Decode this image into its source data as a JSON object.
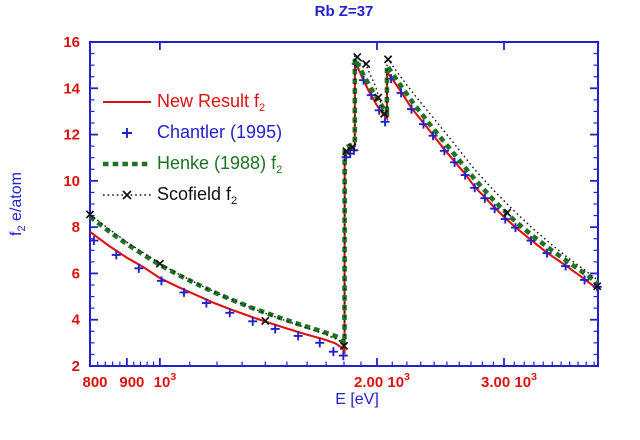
{
  "title": "Rb Z=37",
  "colors": {
    "background": "#ffffff",
    "axis": "#2222cc",
    "tick_labels": "#dd1111",
    "title_text": "#2222cc",
    "new_result": "#e01010",
    "chantler": "#2222cc",
    "henke": "#1e7222",
    "scofield": "#111111"
  },
  "axes": {
    "x": {
      "label": "E [eV]",
      "scale": "log",
      "major_ticks": [
        {
          "value": 800,
          "text": "800",
          "sup": ""
        },
        {
          "value": 900,
          "text": "900",
          "sup": ""
        },
        {
          "value": 1000,
          "text": "10",
          "sup": "3"
        },
        {
          "value": 2000,
          "text": "2.00 10",
          "sup": "3"
        },
        {
          "value": 3000,
          "text": "3.00 10",
          "sup": "3"
        }
      ],
      "minor_ticks": [
        820,
        840,
        860,
        880,
        920,
        940,
        960,
        980,
        1100,
        1200,
        1300,
        1400,
        1500,
        1600,
        1700,
        1800,
        1900,
        2100,
        2200,
        2300,
        2400,
        2500,
        2600,
        2700,
        2800,
        2900,
        3100,
        3200,
        3300,
        3400,
        3500,
        3600,
        3700,
        3800,
        3900,
        4000
      ],
      "top_major_ticks": [
        1000,
        2000,
        3000
      ]
    },
    "y": {
      "label_prefix": "f",
      "label_sub": "2",
      "label_suffix": " e/atom",
      "major_step": 2,
      "minor_step": 0.5
    }
  },
  "chart_data": {
    "type": "line",
    "title": "Rb Z=37",
    "xlabel": "E [eV]",
    "ylabel": "f2 e/atom",
    "x_scale": "log",
    "xlim": [
      800,
      4050
    ],
    "ylim": [
      2,
      16
    ],
    "grid": false,
    "legend_position": "upper-left-inside",
    "edge_energies_eV": {
      "L3": 1804,
      "L2": 1864,
      "L1": 2065
    },
    "series": [
      {
        "name": "new-result",
        "legend_label": "New Result f",
        "legend_sub": "2",
        "color": "#e01010",
        "style": "solid-line",
        "points": [
          [
            800,
            7.8
          ],
          [
            850,
            7.19
          ],
          [
            900,
            6.68
          ],
          [
            950,
            6.26
          ],
          [
            1000,
            5.8
          ],
          [
            1060,
            5.42
          ],
          [
            1120,
            5.08
          ],
          [
            1190,
            4.72
          ],
          [
            1260,
            4.42
          ],
          [
            1340,
            4.12
          ],
          [
            1420,
            3.86
          ],
          [
            1500,
            3.62
          ],
          [
            1590,
            3.38
          ],
          [
            1680,
            3.17
          ],
          [
            1750,
            2.98
          ],
          [
            1790,
            2.78
          ],
          [
            1803,
            2.62
          ],
          [
            1804,
            11.15
          ],
          [
            1830,
            11.32
          ],
          [
            1863,
            11.5
          ],
          [
            1864,
            15.2
          ],
          [
            1900,
            14.6
          ],
          [
            1950,
            13.85
          ],
          [
            2000,
            13.25
          ],
          [
            2040,
            12.88
          ],
          [
            2064,
            12.7
          ],
          [
            2065,
            14.7
          ],
          [
            2100,
            14.4
          ],
          [
            2160,
            13.85
          ],
          [
            2233,
            13.15
          ],
          [
            2320,
            12.5
          ],
          [
            2390,
            12.0
          ],
          [
            2480,
            11.35
          ],
          [
            2560,
            10.85
          ],
          [
            2650,
            10.3
          ],
          [
            2730,
            9.75
          ],
          [
            2820,
            9.3
          ],
          [
            2910,
            8.85
          ],
          [
            3010,
            8.4
          ],
          [
            3110,
            8.0
          ],
          [
            3270,
            7.45
          ],
          [
            3440,
            6.9
          ],
          [
            3650,
            6.35
          ],
          [
            3880,
            5.75
          ],
          [
            4050,
            5.3
          ]
        ]
      },
      {
        "name": "chantler-1995",
        "legend_label": "Chantler (1995)",
        "legend_sub": "",
        "color": "#2222cc",
        "style": "plus-markers",
        "points": [
          [
            810,
            7.42
          ],
          [
            870,
            6.8
          ],
          [
            935,
            6.22
          ],
          [
            1005,
            5.68
          ],
          [
            1080,
            5.18
          ],
          [
            1160,
            4.72
          ],
          [
            1250,
            4.3
          ],
          [
            1345,
            3.93
          ],
          [
            1445,
            3.6
          ],
          [
            1555,
            3.3
          ],
          [
            1666,
            3.0
          ],
          [
            1740,
            2.62
          ],
          [
            1796,
            2.45
          ],
          [
            1812,
            11.02
          ],
          [
            1836,
            11.18
          ],
          [
            1858,
            11.32
          ],
          [
            1872,
            15.05
          ],
          [
            1916,
            14.35
          ],
          [
            1964,
            13.7
          ],
          [
            2014,
            13.05
          ],
          [
            2052,
            12.55
          ],
          [
            2092,
            14.42
          ],
          [
            2160,
            13.8
          ],
          [
            2233,
            13.1
          ],
          [
            2320,
            12.45
          ],
          [
            2392,
            11.95
          ],
          [
            2480,
            11.3
          ],
          [
            2562,
            10.8
          ],
          [
            2650,
            10.25
          ],
          [
            2732,
            9.7
          ],
          [
            2822,
            9.25
          ],
          [
            2912,
            8.8
          ],
          [
            3012,
            8.35
          ],
          [
            3112,
            7.98
          ],
          [
            3270,
            7.42
          ],
          [
            3442,
            6.88
          ],
          [
            3652,
            6.32
          ],
          [
            3880,
            5.72
          ],
          [
            4040,
            5.42
          ]
        ]
      },
      {
        "name": "henke-1988",
        "legend_label": "Henke (1988) f",
        "legend_sub": "2",
        "color": "#1e7222",
        "style": "thick-dashed-line",
        "points": [
          [
            800,
            8.45
          ],
          [
            850,
            7.82
          ],
          [
            900,
            7.27
          ],
          [
            950,
            6.8
          ],
          [
            1000,
            6.37
          ],
          [
            1060,
            5.94
          ],
          [
            1120,
            5.57
          ],
          [
            1190,
            5.18
          ],
          [
            1260,
            4.85
          ],
          [
            1340,
            4.52
          ],
          [
            1420,
            4.24
          ],
          [
            1500,
            3.98
          ],
          [
            1590,
            3.72
          ],
          [
            1680,
            3.49
          ],
          [
            1770,
            3.24
          ],
          [
            1803,
            2.97
          ],
          [
            1804,
            11.42
          ],
          [
            1863,
            11.62
          ],
          [
            1864,
            15.28
          ],
          [
            1920,
            14.52
          ],
          [
            1980,
            13.78
          ],
          [
            2040,
            13.15
          ],
          [
            2064,
            12.98
          ],
          [
            2065,
            14.98
          ],
          [
            2150,
            14.18
          ],
          [
            2250,
            13.32
          ],
          [
            2390,
            12.28
          ],
          [
            2560,
            11.15
          ],
          [
            2730,
            10.08
          ],
          [
            2910,
            9.12
          ],
          [
            3110,
            8.25
          ],
          [
            3300,
            7.58
          ],
          [
            3500,
            6.98
          ],
          [
            3700,
            6.45
          ],
          [
            3900,
            5.95
          ],
          [
            4050,
            5.58
          ]
        ]
      },
      {
        "name": "scofield",
        "legend_label": "Scofield f",
        "legend_sub": "2",
        "color": "#111111",
        "style": "dotted-line-x-markers",
        "points": [
          [
            800,
            8.55
          ],
          [
            850,
            7.92
          ],
          [
            900,
            7.35
          ],
          [
            950,
            6.88
          ],
          [
            1000,
            6.42
          ],
          [
            1060,
            5.98
          ],
          [
            1120,
            5.6
          ],
          [
            1190,
            5.2
          ],
          [
            1260,
            4.86
          ],
          [
            1340,
            4.51
          ],
          [
            1420,
            4.21
          ],
          [
            1500,
            3.94
          ],
          [
            1590,
            3.67
          ],
          [
            1680,
            3.42
          ],
          [
            1770,
            3.12
          ],
          [
            1803,
            2.86
          ],
          [
            1804,
            11.32
          ],
          [
            1863,
            11.52
          ],
          [
            1864,
            15.42
          ],
          [
            1930,
            15.02
          ],
          [
            1990,
            14.1
          ],
          [
            2042,
            13.0
          ],
          [
            2064,
            12.85
          ],
          [
            2065,
            15.32
          ],
          [
            2150,
            14.55
          ],
          [
            2250,
            13.75
          ],
          [
            2390,
            12.75
          ],
          [
            2560,
            11.6
          ],
          [
            2730,
            10.5
          ],
          [
            2910,
            9.55
          ],
          [
            3110,
            8.65
          ],
          [
            3300,
            7.9
          ],
          [
            3500,
            7.22
          ],
          [
            3700,
            6.62
          ],
          [
            3900,
            6.1
          ],
          [
            4050,
            5.7
          ]
        ],
        "marker_points": [
          [
            800,
            8.55
          ],
          [
            1000,
            6.42
          ],
          [
            1400,
            3.95
          ],
          [
            1800,
            2.87
          ],
          [
            1814,
            11.28
          ],
          [
            1848,
            11.45
          ],
          [
            1878,
            15.35
          ],
          [
            1932,
            15.05
          ],
          [
            2008,
            13.6
          ],
          [
            2046,
            12.9
          ],
          [
            2072,
            15.25
          ],
          [
            3030,
            8.62
          ],
          [
            4040,
            5.45
          ]
        ]
      }
    ]
  }
}
